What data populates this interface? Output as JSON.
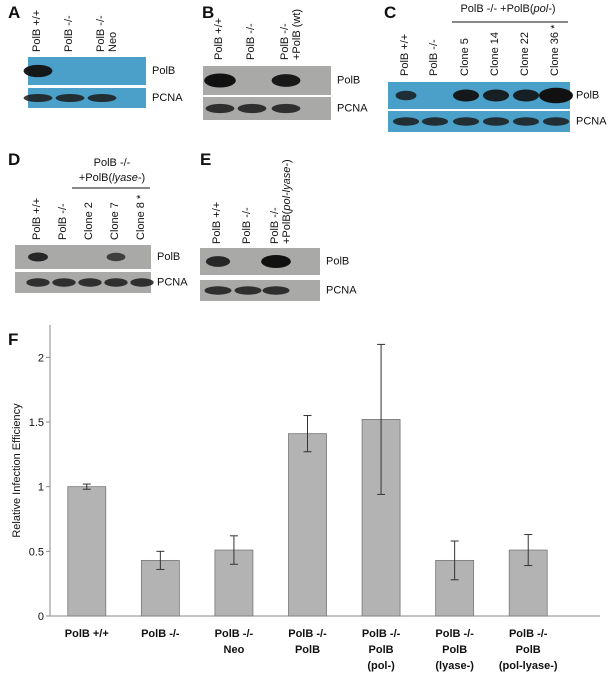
{
  "panels": [
    {
      "label": "A",
      "lanes": [
        [
          "PolB +/+"
        ],
        [
          "PolB -/-"
        ],
        [
          "PolB -/-",
          "Neo"
        ]
      ],
      "rows": [
        "PolB",
        "PCNA"
      ]
    },
    {
      "label": "B",
      "lanes": [
        [
          "PolB +/+"
        ],
        [
          "PolB -/-"
        ],
        [
          "PolB -/-",
          "+PolB (wt)"
        ]
      ],
      "rows": [
        "PolB",
        "PCNA"
      ]
    },
    {
      "label": "C",
      "header": {
        "text": "PolB -/- +PolB(",
        "italic": "pol-",
        "end": ")"
      },
      "lanes": [
        [
          "PolB +/+"
        ],
        [
          "PolB -/-"
        ],
        [
          "Clone 5"
        ],
        [
          "Clone 14"
        ],
        [
          "Clone 22"
        ],
        [
          "Clone 36 *"
        ]
      ],
      "rows": [
        "PolB",
        "PCNA"
      ]
    },
    {
      "label": "D",
      "header": {
        "line1": "PolB -/-",
        "text": "+PolB(",
        "italic": "lyase-",
        "end": ")"
      },
      "lanes": [
        [
          "PolB +/+"
        ],
        [
          "PolB -/-"
        ],
        [
          "Clone 2"
        ],
        [
          "Clone 7"
        ],
        [
          "Clone 8 *"
        ]
      ],
      "rows": [
        "PolB",
        "PCNA"
      ]
    },
    {
      "label": "E",
      "lanes": [
        [
          "PolB +/+"
        ],
        [
          "PolB -/-"
        ],
        [
          "PolB -/-"
        ]
      ],
      "lane_note": {
        "text": "+PolB(",
        "italic": "pol-lyase-",
        "end": ")"
      },
      "rows": [
        "PolB",
        "PCNA"
      ]
    }
  ],
  "chart_data": {
    "type": "bar",
    "panel_label": "F",
    "y_label": "Relative Infection Efficiency",
    "categories": [
      [
        "PolB +/+"
      ],
      [
        "PolB -/-"
      ],
      [
        "PolB -/-",
        "Neo"
      ],
      [
        "PolB -/-",
        "PolB"
      ],
      [
        "PolB -/-",
        "PolB",
        "(pol-)"
      ],
      [
        "PolB -/-",
        "PolB",
        "(lyase-)"
      ],
      [
        "PolB -/-",
        "PolB",
        "(pol-lyase-)"
      ]
    ],
    "values": [
      1.0,
      0.43,
      0.51,
      1.41,
      1.52,
      0.43,
      0.51
    ],
    "errors": [
      0.02,
      0.07,
      0.11,
      0.14,
      0.58,
      0.15,
      0.12
    ],
    "color": "#b3b3b3",
    "ylim": [
      0,
      2.25
    ],
    "yticks": [
      0,
      0.5,
      1,
      1.5,
      2
    ],
    "grid": false
  }
}
